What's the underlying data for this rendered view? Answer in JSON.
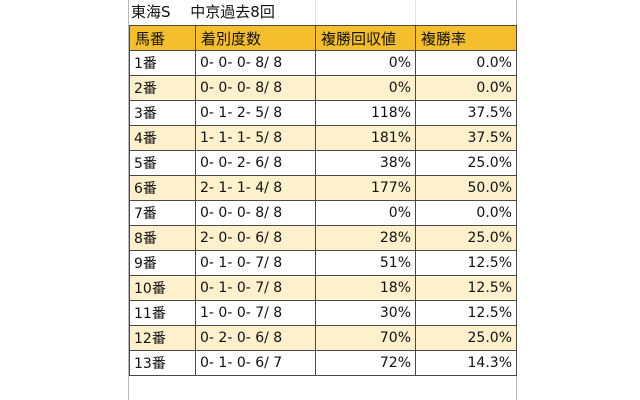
{
  "title": "東海S　 中京過去8回",
  "headers": [
    "馬番",
    "着別度数",
    "複勝回収値",
    "複勝率"
  ],
  "rows": [
    {
      "horse": "1番",
      "record": "0- 0- 0- 8/ 8",
      "return": "0%",
      "rate": "0.0%"
    },
    {
      "horse": "2番",
      "record": "0- 0- 0- 8/ 8",
      "return": "0%",
      "rate": "0.0%"
    },
    {
      "horse": "3番",
      "record": "0- 1- 2- 5/ 8",
      "return": "118%",
      "rate": "37.5%"
    },
    {
      "horse": "4番",
      "record": "1- 1- 1- 5/ 8",
      "return": "181%",
      "rate": "37.5%"
    },
    {
      "horse": "5番",
      "record": "0- 0- 2- 6/ 8",
      "return": "38%",
      "rate": "25.0%"
    },
    {
      "horse": "6番",
      "record": "2- 1- 1- 4/ 8",
      "return": "177%",
      "rate": "50.0%"
    },
    {
      "horse": "7番",
      "record": "0- 0- 0- 8/ 8",
      "return": "0%",
      "rate": "0.0%"
    },
    {
      "horse": "8番",
      "record": "2- 0- 0- 6/ 8",
      "return": "28%",
      "rate": "25.0%"
    },
    {
      "horse": "9番",
      "record": "0- 1- 0- 7/ 8",
      "return": "51%",
      "rate": "12.5%"
    },
    {
      "horse": "10番",
      "record": "0- 1- 0- 7/ 8",
      "return": "18%",
      "rate": "12.5%"
    },
    {
      "horse": "11番",
      "record": "1- 0- 0- 7/ 8",
      "return": "30%",
      "rate": "12.5%"
    },
    {
      "horse": "12番",
      "record": "0- 2- 0- 6/ 8",
      "return": "70%",
      "rate": "25.0%"
    },
    {
      "horse": "13番",
      "record": "0- 1- 0- 6/ 7",
      "return": "72%",
      "rate": "14.3%"
    }
  ],
  "colors": {
    "header": "#f5be2c",
    "alt_row": "#fdf0cd",
    "row": "#ffffff",
    "border": "#4a4a4a"
  }
}
